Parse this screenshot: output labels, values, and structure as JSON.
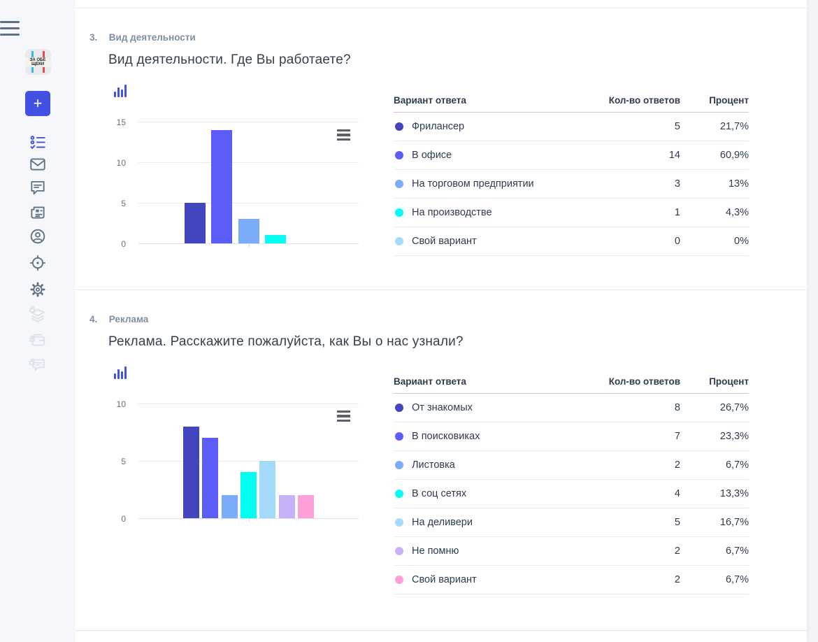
{
  "app": {
    "accent": "#4351e2",
    "logo_text": "ЗА ОБЕ ЩЕКИ",
    "plus_label": "+",
    "sidebar_icons": [
      "menu",
      "app-logo",
      "add",
      "surveys-list",
      "mail",
      "comments",
      "news",
      "profile",
      "target",
      "settings",
      "layers-locked",
      "wallet-locked",
      "chat-locked"
    ]
  },
  "questions": [
    {
      "number": "3.",
      "category": "Вид деятельности",
      "title": "Вид деятельности. Где Вы работаете?",
      "table_headers": [
        "Вариант ответа",
        "Кол-во ответов",
        "Процент"
      ],
      "answers": [
        {
          "label": "Фрилансер",
          "count": 5,
          "percent": "21,7%",
          "color": "#4245bd"
        },
        {
          "label": "В офисе",
          "count": 14,
          "percent": "60,9%",
          "color": "#5c5df8"
        },
        {
          "label": "На торговом предприятии",
          "count": 3,
          "percent": "13%",
          "color": "#7aacf9"
        },
        {
          "label": "На производстве",
          "count": 1,
          "percent": "4,3%",
          "color": "#00fff2"
        },
        {
          "label": "Свой вариант",
          "count": 0,
          "percent": "0%",
          "color": "#a5dbfa"
        }
      ]
    },
    {
      "number": "4.",
      "category": "Реклама",
      "title": "Реклама. Расскажите пожалуйста, как Вы о нас узнали?",
      "table_headers": [
        "Вариант ответа",
        "Кол-во ответов",
        "Процент"
      ],
      "answers": [
        {
          "label": "От знакомых",
          "count": 8,
          "percent": "26,7%",
          "color": "#4245bd"
        },
        {
          "label": "В поисковиках",
          "count": 7,
          "percent": "23,3%",
          "color": "#5c5df8"
        },
        {
          "label": "Листовка",
          "count": 2,
          "percent": "6,7%",
          "color": "#7aacf9"
        },
        {
          "label": "В соц сетях",
          "count": 4,
          "percent": "13,3%",
          "color": "#00fff2"
        },
        {
          "label": "На деливери",
          "count": 5,
          "percent": "16,7%",
          "color": "#a5dbfa"
        },
        {
          "label": "Не помню",
          "count": 2,
          "percent": "6,7%",
          "color": "#c6b2f8"
        },
        {
          "label": "Свой вариант",
          "count": 2,
          "percent": "6,7%",
          "color": "#ff9fd9"
        }
      ]
    }
  ],
  "chart_data": [
    {
      "type": "bar",
      "title": "Вид деятельности. Где Вы работаете?",
      "categories": [
        "Фрилансер",
        "В офисе",
        "На торговом предприятии",
        "На производстве",
        "Свой вариант"
      ],
      "values": [
        5,
        14,
        3,
        1,
        0
      ],
      "colors": [
        "#4245bd",
        "#5c5df8",
        "#7aacf9",
        "#00fff2",
        "#a5dbfa"
      ],
      "xlabel": "",
      "ylabel": "",
      "yticks": [
        0,
        5,
        10,
        15
      ],
      "ylim": [
        0,
        15
      ],
      "grid": true,
      "legend": "none"
    },
    {
      "type": "bar",
      "title": "Реклама. Расскажите пожалуйста, как Вы о нас узнали?",
      "categories": [
        "От знакомых",
        "В поисковиках",
        "Листовка",
        "В соц сетях",
        "На деливери",
        "Не помню",
        "Свой вариант"
      ],
      "values": [
        8,
        7,
        2,
        4,
        5,
        2,
        2
      ],
      "colors": [
        "#4245bd",
        "#5c5df8",
        "#7aacf9",
        "#00fff2",
        "#a5dbfa",
        "#c6b2f8",
        "#ff9fd9"
      ],
      "xlabel": "",
      "ylabel": "",
      "yticks": [
        0,
        5,
        10
      ],
      "ylim": [
        0,
        10
      ],
      "grid": true,
      "legend": "none"
    }
  ]
}
